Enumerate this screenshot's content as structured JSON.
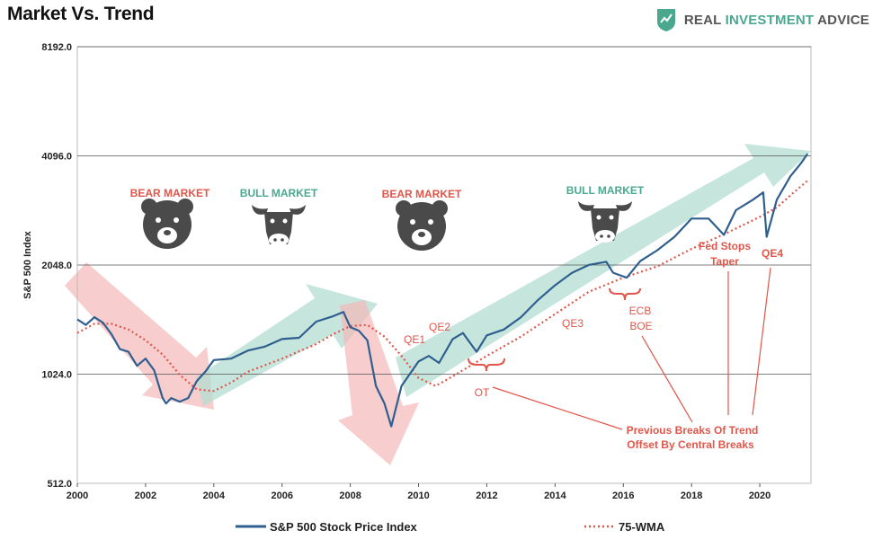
{
  "header": {
    "title": "Market Vs. Trend",
    "brand_word1": "REAL",
    "brand_word2": "INVESTMENT",
    "brand_word3": "ADVICE",
    "brand_icon": "shield-chart-icon"
  },
  "colors": {
    "series_line": "#2f5f8f",
    "wma_line": "#e0564a",
    "bear": "#e0564a",
    "bull": "#4aa88e",
    "bull_arrow": "#b3ddd2",
    "bear_arrow": "#f4b8b8",
    "annotation": "#e0564a"
  },
  "chart_data": {
    "type": "line",
    "title": "Market Vs. Trend",
    "ylabel": "S&P 500 Index",
    "xlabel": "",
    "y_scale": "log2",
    "ylim": [
      512,
      8192
    ],
    "xlim": [
      2000,
      2021.5
    ],
    "y_ticks": [
      "512.0",
      "1024.0",
      "2048.0",
      "4096.0",
      "8192.0"
    ],
    "x_ticks": [
      "2000",
      "2002",
      "2004",
      "2006",
      "2008",
      "2010",
      "2012",
      "2014",
      "2016",
      "2018",
      "2020"
    ],
    "grid": "horizontal",
    "legend_placement": "bottom",
    "series": [
      {
        "name": "S&P 500 Stock Price Index",
        "style": "solid",
        "x": [
          2000.0,
          2000.25,
          2000.5,
          2000.75,
          2001.0,
          2001.25,
          2001.5,
          2001.75,
          2002.0,
          2002.25,
          2002.5,
          2002.6,
          2002.75,
          2003.0,
          2003.25,
          2003.5,
          2003.75,
          2004.0,
          2004.5,
          2005.0,
          2005.5,
          2006.0,
          2006.5,
          2007.0,
          2007.5,
          2007.8,
          2008.0,
          2008.25,
          2008.5,
          2008.75,
          2009.0,
          2009.2,
          2009.5,
          2010.0,
          2010.3,
          2010.6,
          2011.0,
          2011.3,
          2011.7,
          2012.0,
          2012.5,
          2013.0,
          2013.5,
          2014.0,
          2014.5,
          2015.0,
          2015.5,
          2015.7,
          2016.1,
          2016.5,
          2017.0,
          2017.5,
          2018.0,
          2018.5,
          2018.95,
          2019.3,
          2019.8,
          2020.1,
          2020.2,
          2020.5,
          2020.9,
          2021.2,
          2021.4
        ],
        "y": [
          1450,
          1400,
          1470,
          1420,
          1320,
          1200,
          1180,
          1080,
          1130,
          1050,
          880,
          850,
          880,
          860,
          880,
          980,
          1040,
          1120,
          1130,
          1190,
          1220,
          1280,
          1290,
          1430,
          1480,
          1520,
          1380,
          1350,
          1270,
          950,
          850,
          735,
          950,
          1110,
          1150,
          1100,
          1280,
          1330,
          1180,
          1310,
          1360,
          1470,
          1640,
          1800,
          1950,
          2050,
          2090,
          1950,
          1890,
          2100,
          2250,
          2450,
          2750,
          2750,
          2480,
          2900,
          3100,
          3250,
          2450,
          3100,
          3600,
          3900,
          4150
        ]
      },
      {
        "name": "75-WMA",
        "style": "dotted",
        "x": [
          2000.0,
          2000.5,
          2001.0,
          2001.5,
          2002.0,
          2002.5,
          2003.0,
          2003.5,
          2004.0,
          2004.5,
          2005.0,
          2006.0,
          2007.0,
          2007.5,
          2008.0,
          2008.5,
          2009.0,
          2009.5,
          2010.0,
          2010.5,
          2011.0,
          2012.0,
          2013.0,
          2014.0,
          2015.0,
          2016.0,
          2017.0,
          2018.0,
          2019.0,
          2020.0,
          2020.5,
          2021.0,
          2021.4
        ],
        "y": [
          1330,
          1410,
          1410,
          1360,
          1270,
          1160,
          1020,
          930,
          920,
          970,
          1040,
          1130,
          1240,
          1320,
          1390,
          1400,
          1300,
          1150,
          1000,
          950,
          1010,
          1150,
          1300,
          1500,
          1730,
          1890,
          2030,
          2270,
          2500,
          2780,
          2950,
          3250,
          3500
        ]
      }
    ],
    "regime_labels": [
      {
        "label": "BEAR MARKET",
        "type": "bear"
      },
      {
        "label": "BULL MARKET",
        "type": "bull"
      },
      {
        "label": "BEAR MARKET",
        "type": "bear"
      },
      {
        "label": "BULL MARKET",
        "type": "bull"
      }
    ],
    "annotations": [
      {
        "label": "QE1"
      },
      {
        "label": "QE2"
      },
      {
        "label": "QE3"
      },
      {
        "label": "OT"
      },
      {
        "label": "ECB"
      },
      {
        "label": "BOE"
      },
      {
        "label": "Fed Stops"
      },
      {
        "label": "Taper"
      },
      {
        "label": "QE4"
      },
      {
        "label": "Previous Breaks Of Trend"
      },
      {
        "label": "Offset By Central Breaks"
      }
    ]
  }
}
